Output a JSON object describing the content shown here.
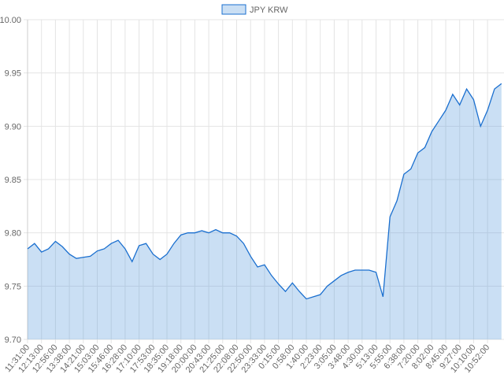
{
  "chart_data": {
    "type": "line",
    "categories": [
      "11:31:00",
      null,
      "12:13:00",
      null,
      "12:56:00",
      null,
      "13:38:00",
      null,
      "14:21:00",
      null,
      "15:03:00",
      null,
      "15:46:00",
      null,
      "16:28:00",
      null,
      "17:10:00",
      null,
      "17:53:00",
      null,
      "18:35:00",
      null,
      "19:18:00",
      null,
      "20:00:00",
      null,
      "20:43:00",
      null,
      "21:25:00",
      null,
      "22:08:00",
      null,
      "22:50:00",
      null,
      "23:33:00",
      null,
      "0:15:00",
      null,
      "0:58:00",
      null,
      "1:40:00",
      null,
      "2:23:00",
      null,
      "3:05:00",
      null,
      "3:48:00",
      null,
      "4:30:00",
      null,
      "5:13:00",
      null,
      "5:55:00",
      null,
      "6:38:00",
      null,
      "7:20:00",
      null,
      "8:02:00",
      null,
      "8:45:00",
      null,
      "9:27:00",
      null,
      "10:10:00",
      null,
      "10:52:00",
      null,
      null
    ],
    "series": [
      {
        "name": "JPY KRW",
        "color": "#1a6fcf",
        "fill": "rgba(80,150,220,0.3)",
        "values": [
          9.785,
          9.79,
          9.782,
          9.785,
          9.792,
          9.787,
          9.78,
          9.776,
          9.777,
          9.778,
          9.783,
          9.785,
          9.79,
          9.793,
          9.785,
          9.773,
          9.788,
          9.79,
          9.78,
          9.775,
          9.78,
          9.79,
          9.798,
          9.8,
          9.8,
          9.802,
          9.8,
          9.803,
          9.8,
          9.8,
          9.797,
          9.79,
          9.778,
          9.768,
          9.77,
          9.76,
          9.752,
          9.745,
          9.753,
          9.745,
          9.738,
          9.74,
          9.742,
          9.75,
          9.755,
          9.76,
          9.763,
          9.765,
          9.765,
          9.765,
          9.763,
          9.74,
          9.815,
          9.83,
          9.855,
          9.86,
          9.875,
          9.88,
          9.895,
          9.905,
          9.915,
          9.93,
          9.92,
          9.935,
          9.925,
          9.9,
          9.915,
          9.935,
          9.94
        ]
      }
    ],
    "ylim": [
      9.7,
      10.0
    ],
    "yticks": [
      {
        "value": 9.7,
        "label": "9.70"
      },
      9.75,
      {
        "value": 9.8,
        "label": "9.80"
      },
      9.85,
      {
        "value": 9.9,
        "label": "9.90"
      },
      9.95,
      {
        "value": 10.0,
        "label": "10.00"
      }
    ],
    "grid": true,
    "legend": "top"
  }
}
